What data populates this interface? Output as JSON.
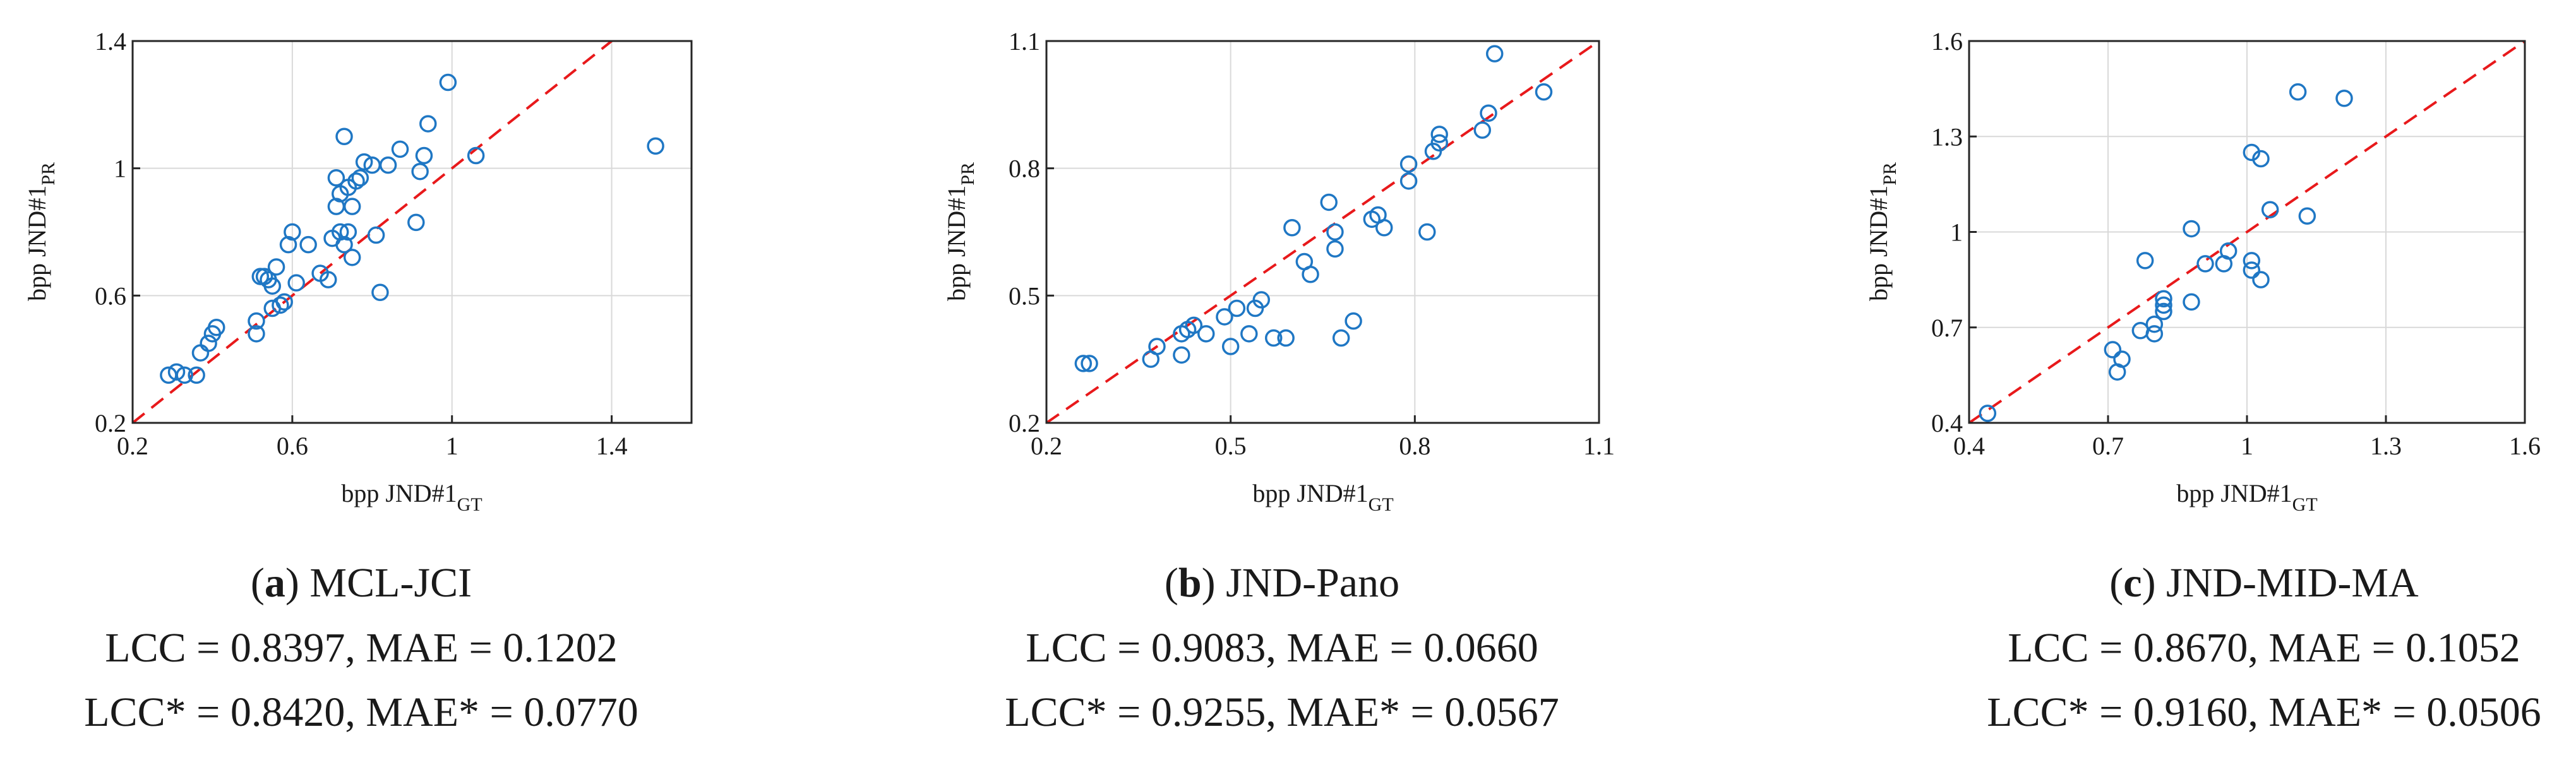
{
  "figure_title": "",
  "colors": {
    "marker": "#1f77c4",
    "reference_line": "#e8191b",
    "grid": "#d9d9d9",
    "axis": "#262626"
  },
  "chart_data": [
    {
      "type": "scatter",
      "panel_label": "a",
      "dataset": "MCL-JCI",
      "metrics_line1": "LCC = 0.8397, MAE = 0.1202",
      "metrics_line2": "LCC* = 0.8420, MAE* = 0.0770",
      "xlabel": {
        "main": "bpp JND#1",
        "sub": "GT"
      },
      "ylabel": {
        "main": "bpp JND#1",
        "sub": "PR"
      },
      "xlim": [
        0.2,
        1.6
      ],
      "ylim": [
        0.2,
        1.4
      ],
      "xticks": [
        "0.2",
        "0.6",
        "1",
        "1.4"
      ],
      "yticks": [
        "0.2",
        "0.6",
        "1",
        "1.4"
      ],
      "grid": true,
      "reference_line": "y = x",
      "points": [
        [
          0.29,
          0.35
        ],
        [
          0.31,
          0.36
        ],
        [
          0.33,
          0.35
        ],
        [
          0.36,
          0.35
        ],
        [
          0.37,
          0.42
        ],
        [
          0.39,
          0.45
        ],
        [
          0.4,
          0.48
        ],
        [
          0.41,
          0.5
        ],
        [
          0.51,
          0.48
        ],
        [
          0.51,
          0.52
        ],
        [
          0.52,
          0.66
        ],
        [
          0.53,
          0.66
        ],
        [
          0.54,
          0.65
        ],
        [
          0.55,
          0.56
        ],
        [
          0.55,
          0.63
        ],
        [
          0.56,
          0.69
        ],
        [
          0.57,
          0.57
        ],
        [
          0.58,
          0.58
        ],
        [
          0.59,
          0.76
        ],
        [
          0.6,
          0.8
        ],
        [
          0.61,
          0.64
        ],
        [
          0.64,
          0.76
        ],
        [
          0.67,
          0.67
        ],
        [
          0.69,
          0.65
        ],
        [
          0.7,
          0.78
        ],
        [
          0.71,
          0.97
        ],
        [
          0.71,
          0.88
        ],
        [
          0.72,
          0.8
        ],
        [
          0.72,
          0.92
        ],
        [
          0.73,
          1.1
        ],
        [
          0.73,
          0.76
        ],
        [
          0.74,
          0.8
        ],
        [
          0.74,
          0.94
        ],
        [
          0.75,
          0.88
        ],
        [
          0.75,
          0.72
        ],
        [
          0.76,
          0.96
        ],
        [
          0.77,
          0.97
        ],
        [
          0.78,
          1.02
        ],
        [
          0.8,
          1.01
        ],
        [
          0.81,
          0.79
        ],
        [
          0.82,
          0.61
        ],
        [
          0.84,
          1.01
        ],
        [
          0.87,
          1.06
        ],
        [
          0.91,
          0.83
        ],
        [
          0.92,
          0.99
        ],
        [
          0.93,
          1.04
        ],
        [
          0.94,
          1.14
        ],
        [
          0.99,
          1.27
        ],
        [
          1.06,
          1.04
        ],
        [
          1.51,
          1.07
        ]
      ]
    },
    {
      "type": "scatter",
      "panel_label": "b",
      "dataset": "JND-Pano",
      "metrics_line1": "LCC = 0.9083, MAE = 0.0660",
      "metrics_line2": "LCC* = 0.9255, MAE* = 0.0567",
      "xlabel": {
        "main": "bpp JND#1",
        "sub": "GT"
      },
      "ylabel": {
        "main": "bpp JND#1",
        "sub": "PR"
      },
      "xlim": [
        0.2,
        1.1
      ],
      "ylim": [
        0.2,
        1.1
      ],
      "xticks": [
        "0.2",
        "0.5",
        "0.8",
        "1.1"
      ],
      "yticks": [
        "0.2",
        "0.5",
        "0.8",
        "1.1"
      ],
      "grid": true,
      "reference_line": "y = x",
      "points": [
        [
          0.26,
          0.34
        ],
        [
          0.27,
          0.34
        ],
        [
          0.37,
          0.35
        ],
        [
          0.38,
          0.38
        ],
        [
          0.42,
          0.36
        ],
        [
          0.42,
          0.41
        ],
        [
          0.43,
          0.42
        ],
        [
          0.44,
          0.43
        ],
        [
          0.46,
          0.41
        ],
        [
          0.49,
          0.45
        ],
        [
          0.5,
          0.38
        ],
        [
          0.51,
          0.47
        ],
        [
          0.53,
          0.41
        ],
        [
          0.54,
          0.47
        ],
        [
          0.55,
          0.49
        ],
        [
          0.57,
          0.4
        ],
        [
          0.59,
          0.4
        ],
        [
          0.6,
          0.66
        ],
        [
          0.62,
          0.58
        ],
        [
          0.63,
          0.55
        ],
        [
          0.66,
          0.72
        ],
        [
          0.67,
          0.61
        ],
        [
          0.67,
          0.65
        ],
        [
          0.68,
          0.4
        ],
        [
          0.7,
          0.44
        ],
        [
          0.73,
          0.68
        ],
        [
          0.74,
          0.69
        ],
        [
          0.75,
          0.66
        ],
        [
          0.79,
          0.77
        ],
        [
          0.79,
          0.81
        ],
        [
          0.82,
          0.65
        ],
        [
          0.83,
          0.84
        ],
        [
          0.84,
          0.86
        ],
        [
          0.84,
          0.88
        ],
        [
          0.91,
          0.89
        ],
        [
          0.92,
          0.93
        ],
        [
          0.93,
          1.07
        ],
        [
          1.01,
          0.98
        ]
      ]
    },
    {
      "type": "scatter",
      "panel_label": "c",
      "dataset": "JND-MID-MA",
      "metrics_line1": "LCC = 0.8670, MAE = 0.1052",
      "metrics_line2": "LCC* = 0.9160, MAE* = 0.0506",
      "xlabel": {
        "main": "bpp JND#1",
        "sub": "GT"
      },
      "ylabel": {
        "main": "bpp JND#1",
        "sub": "PR"
      },
      "xlim": [
        0.4,
        1.6
      ],
      "ylim": [
        0.4,
        1.6
      ],
      "xticks": [
        "0.4",
        "0.7",
        "1",
        "1.3",
        "1.6"
      ],
      "yticks": [
        "0.4",
        "0.7",
        "1",
        "1.3",
        "1.6"
      ],
      "grid": true,
      "reference_line": "y = x",
      "points": [
        [
          0.44,
          0.43
        ],
        [
          0.71,
          0.63
        ],
        [
          0.72,
          0.56
        ],
        [
          0.73,
          0.6
        ],
        [
          0.77,
          0.69
        ],
        [
          0.78,
          0.91
        ],
        [
          0.8,
          0.68
        ],
        [
          0.8,
          0.71
        ],
        [
          0.82,
          0.75
        ],
        [
          0.82,
          0.77
        ],
        [
          0.82,
          0.79
        ],
        [
          0.88,
          1.01
        ],
        [
          0.88,
          0.78
        ],
        [
          0.91,
          0.9
        ],
        [
          0.95,
          0.9
        ],
        [
          0.96,
          0.94
        ],
        [
          1.01,
          0.91
        ],
        [
          1.01,
          0.88
        ],
        [
          1.01,
          1.25
        ],
        [
          1.03,
          1.23
        ],
        [
          1.03,
          0.85
        ],
        [
          1.05,
          1.07
        ],
        [
          1.11,
          1.44
        ],
        [
          1.13,
          1.05
        ],
        [
          1.21,
          1.42
        ]
      ]
    }
  ]
}
